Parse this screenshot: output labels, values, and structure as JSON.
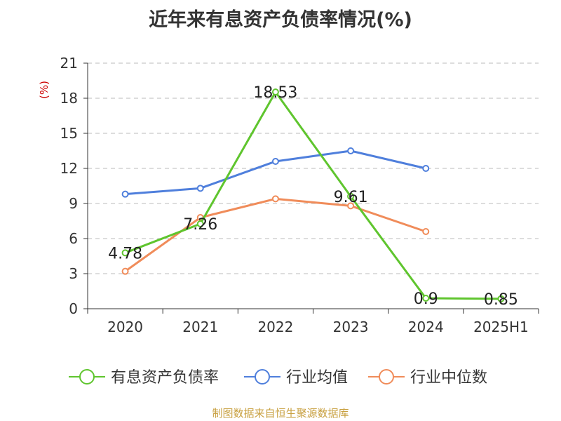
{
  "title": "近年来有息资产负债率情况(%)",
  "footer": "制图数据来自恒生聚源数据库",
  "chart_data": {
    "type": "line",
    "title": "近年来有息资产负债率情况(%)",
    "ylabel": "(%)",
    "ylim": [
      0,
      21
    ],
    "yticks": [
      0,
      3,
      6,
      9,
      12,
      15,
      18,
      21
    ],
    "categories": [
      "2020",
      "2021",
      "2022",
      "2023",
      "2024",
      "2025H1"
    ],
    "grid": true,
    "legend_position": "bottom",
    "series": [
      {
        "name": "有息资产负债率",
        "color": "#5fc52e",
        "values": [
          4.78,
          7.26,
          18.53,
          9.61,
          0.9,
          0.85
        ],
        "labels": [
          "4.78",
          "7.26",
          "18.53",
          "9.61",
          "0.9",
          "0.85"
        ]
      },
      {
        "name": "行业均值",
        "color": "#4f7fdc",
        "values": [
          9.8,
          10.3,
          12.6,
          13.5,
          12.0,
          null
        ]
      },
      {
        "name": "行业中位数",
        "color": "#f08c5a",
        "values": [
          3.2,
          7.8,
          9.4,
          8.8,
          6.6,
          null
        ]
      }
    ]
  }
}
